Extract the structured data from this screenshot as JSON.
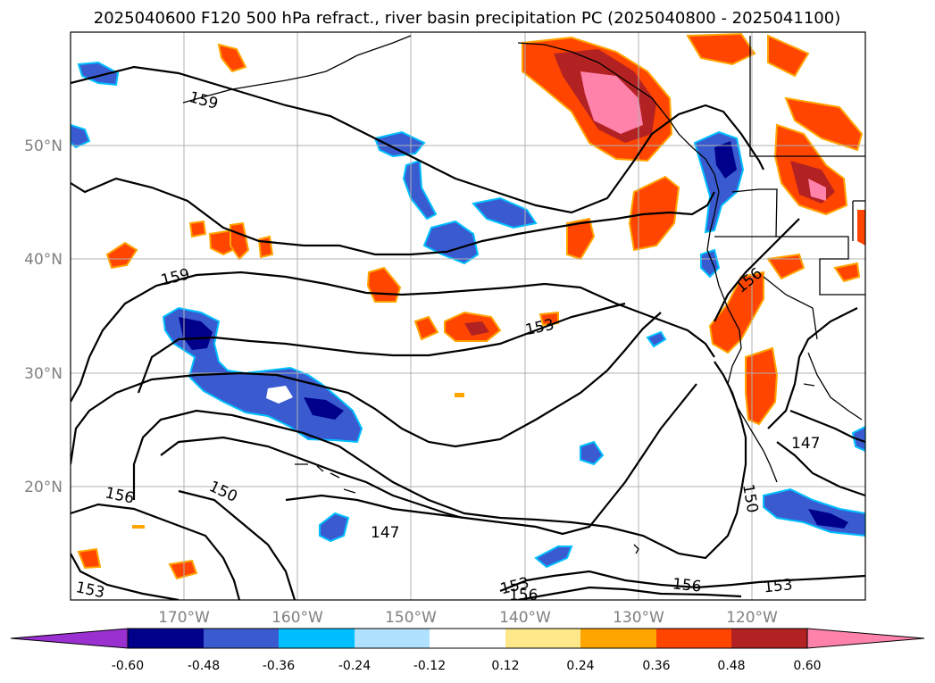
{
  "title": "2025040600 F120 500 hPa refract., river basin precipitation PC (2025040800 - 2025041100)",
  "lat_labels": [
    "50°N",
    "40°N",
    "30°N",
    "20°N"
  ],
  "lon_labels": [
    "170°W",
    "160°W",
    "150°W",
    "140°W",
    "130°W",
    "120°W"
  ],
  "contour_labels": [
    "159",
    "159",
    "156",
    "156",
    "156",
    "156",
    "153",
    "153",
    "153",
    "153",
    "150",
    "150",
    "147",
    "147"
  ],
  "colorbar": {
    "ticks": [
      "-0.60",
      "-0.48",
      "-0.36",
      "-0.24",
      "-0.12",
      "0.12",
      "0.24",
      "0.36",
      "0.48",
      "0.60"
    ],
    "colors": [
      "#9b30d0",
      "#00008b",
      "#3a5bd0",
      "#00bfff",
      "#b0e2ff",
      "#ffffff",
      "#ffe88a",
      "#ffa500",
      "#ff4500",
      "#b22222",
      "#ff82ab"
    ]
  },
  "colors": {
    "coast": "#000000",
    "grid": "#b0b0b0",
    "contour": "#000000"
  }
}
